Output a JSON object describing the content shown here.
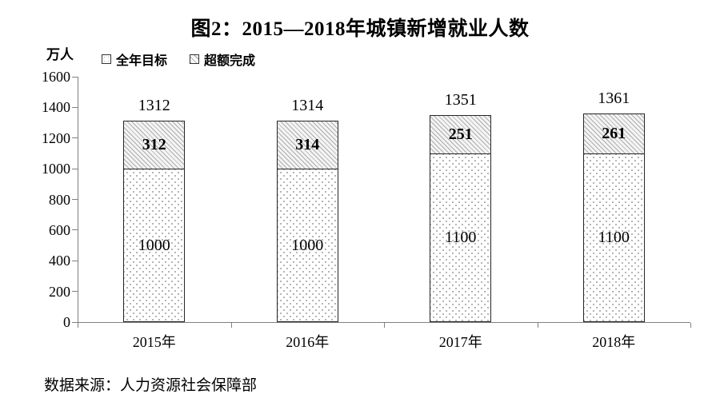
{
  "title": "图2：2015—2018年城镇新增就业人数",
  "y_axis_unit": "万人",
  "legend": {
    "items": [
      {
        "label": "全年目标",
        "pattern": "dotted"
      },
      {
        "label": "超额完成",
        "pattern": "hatched"
      }
    ]
  },
  "source": "数据来源：人力资源社会保障部",
  "colors": {
    "bar_border": "#262626",
    "pattern_dot": "#9c9c9c",
    "pattern_hatch_line": "#adadad",
    "axis": "#808080",
    "text": "#000000",
    "background": "#ffffff"
  },
  "chart_data": {
    "type": "bar",
    "stacked": true,
    "title": "图2：2015—2018年城镇新增就业人数",
    "categories": [
      "2015年",
      "2016年",
      "2017年",
      "2018年"
    ],
    "series": [
      {
        "name": "全年目标",
        "pattern": "dotted",
        "values": [
          1000,
          1000,
          1100,
          1100
        ]
      },
      {
        "name": "超额完成",
        "pattern": "hatched",
        "values": [
          312,
          314,
          251,
          261
        ]
      }
    ],
    "totals": [
      1312,
      1314,
      1351,
      1361
    ],
    "xlabel": "",
    "ylabel": "万人",
    "ylim": [
      0,
      1600
    ],
    "yticks": [
      0,
      200,
      400,
      600,
      800,
      1000,
      1200,
      1400,
      1600
    ],
    "grid": false,
    "legend_position": "top-left",
    "source": "数据来源：人力资源社会保障部"
  }
}
